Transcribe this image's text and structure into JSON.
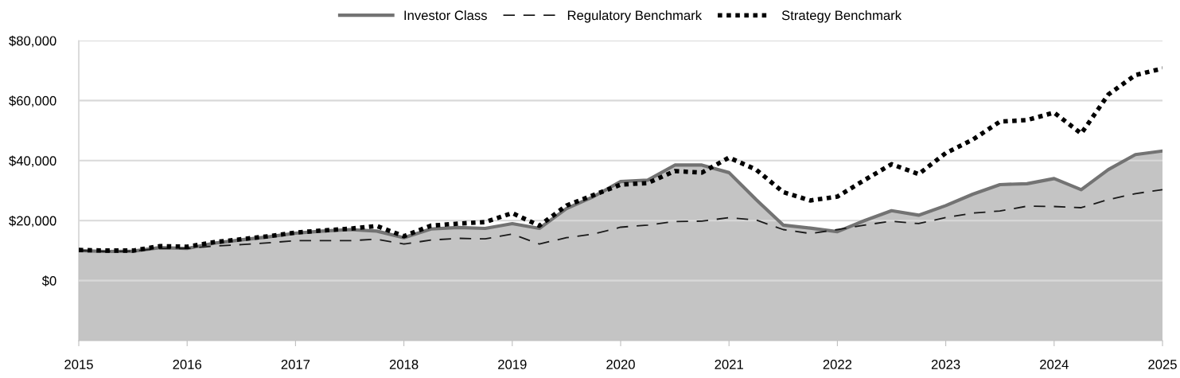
{
  "chart_data": {
    "type": "area",
    "x": [
      2015,
      2015.25,
      2015.5,
      2015.75,
      2016,
      2016.25,
      2016.5,
      2016.75,
      2017,
      2017.25,
      2017.5,
      2017.75,
      2018,
      2018.25,
      2018.5,
      2018.75,
      2019,
      2019.25,
      2019.5,
      2019.75,
      2020,
      2020.25,
      2020.5,
      2020.75,
      2021,
      2021.25,
      2021.5,
      2021.75,
      2022,
      2022.25,
      2022.5,
      2022.75,
      2023,
      2023.25,
      2023.5,
      2023.75,
      2024,
      2024.25,
      2024.5,
      2024.75,
      2025
    ],
    "series": [
      {
        "name": "Investor Class",
        "color": "#737373",
        "line_style": "solid",
        "values": [
          10000,
          9700,
          9800,
          11000,
          10700,
          12500,
          13600,
          14600,
          15800,
          16500,
          17000,
          16500,
          14300,
          17200,
          17700,
          17400,
          19000,
          17400,
          24000,
          28000,
          33000,
          33500,
          38500,
          38500,
          36000,
          27000,
          18500,
          17500,
          16300,
          20000,
          23300,
          21800,
          25000,
          28800,
          32000,
          32300,
          34000,
          30300,
          37000,
          42000,
          43200
        ]
      },
      {
        "name": "Regulatory Benchmark",
        "type": "line",
        "color": "#1a1a1a",
        "line_style": "dashed",
        "values": [
          10000,
          9700,
          9800,
          10700,
          10700,
          11500,
          12000,
          12600,
          13300,
          13300,
          13300,
          13800,
          12200,
          13500,
          14100,
          13900,
          15500,
          12200,
          14300,
          15500,
          17800,
          18500,
          19700,
          19800,
          21000,
          20200,
          17000,
          15700,
          17000,
          18500,
          19800,
          19000,
          21000,
          22500,
          23200,
          24800,
          24700,
          24300,
          27000,
          29000,
          30300
        ]
      },
      {
        "name": "Strategy Benchmark",
        "type": "line",
        "color": "#000000",
        "line_style": "dotted",
        "values": [
          10200,
          10000,
          10000,
          11500,
          11300,
          12800,
          13800,
          14800,
          16000,
          16700,
          17300,
          18200,
          14800,
          18300,
          19000,
          19500,
          22500,
          18300,
          25000,
          28500,
          32000,
          32500,
          36500,
          36000,
          41000,
          37000,
          29500,
          26700,
          28000,
          33500,
          38800,
          35500,
          42500,
          47000,
          53000,
          53500,
          56000,
          49000,
          62000,
          68500,
          70700
        ]
      }
    ],
    "xlim": [
      2015,
      2025
    ],
    "xticks": [
      2015,
      2016,
      2017,
      2018,
      2019,
      2020,
      2021,
      2022,
      2023,
      2024,
      2025
    ],
    "ylim": [
      -20000,
      80000
    ],
    "yticks": [
      {
        "value": 0,
        "label": "$0"
      },
      {
        "value": 20000,
        "label": "$20,000"
      },
      {
        "value": 40000,
        "label": "$40,000"
      },
      {
        "value": 60000,
        "label": "$60,000"
      },
      {
        "value": 80000,
        "label": "$80,000"
      }
    ],
    "bands": [
      {
        "axis": "y",
        "from": -20000,
        "to": 0,
        "color": "#c4c4c4"
      }
    ],
    "grid": "y",
    "legend": "top"
  }
}
